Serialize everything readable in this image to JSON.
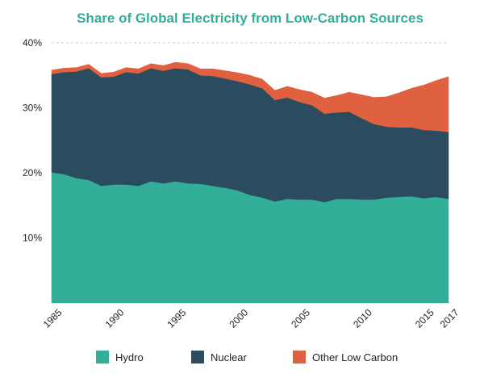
{
  "chart_data": {
    "type": "area",
    "stacked": true,
    "title": "Share of Global Electricity from Low-Carbon Sources",
    "xlabel": "",
    "ylabel": "",
    "xlim": [
      1985,
      2017
    ],
    "ylim": [
      0,
      40
    ],
    "y_ticks": [
      "10%",
      "20%",
      "30%",
      "40%"
    ],
    "y_tick_values": [
      10,
      20,
      30,
      40
    ],
    "x_ticks": [
      "1985",
      "1990",
      "1995",
      "2000",
      "2005",
      "2010",
      "2015",
      "2017"
    ],
    "x_tick_values": [
      1985,
      1990,
      1995,
      2000,
      2005,
      2010,
      2015,
      2017
    ],
    "grid": "horizontal dashed",
    "legend_position": "bottom",
    "x": [
      1985,
      1986,
      1987,
      1988,
      1989,
      1990,
      1991,
      1992,
      1993,
      1994,
      1995,
      1996,
      1997,
      1998,
      1999,
      2000,
      2001,
      2002,
      2003,
      2004,
      2005,
      2006,
      2007,
      2008,
      2009,
      2010,
      2011,
      2012,
      2013,
      2014,
      2015,
      2016,
      2017
    ],
    "series": [
      {
        "name": "Hydro",
        "color": "#33ae98",
        "values": [
          20.1,
          19.8,
          19.2,
          18.9,
          18.0,
          18.2,
          18.2,
          18.0,
          18.7,
          18.4,
          18.7,
          18.4,
          18.3,
          18.0,
          17.7,
          17.3,
          16.6,
          16.2,
          15.6,
          16.0,
          15.9,
          15.9,
          15.5,
          16.0,
          16.0,
          15.9,
          15.9,
          16.2,
          16.3,
          16.4,
          16.1,
          16.3,
          16.0
        ]
      },
      {
        "name": "Nuclear",
        "color": "#2b4b5f",
        "values": [
          15.1,
          15.7,
          16.4,
          17.2,
          16.7,
          16.6,
          17.3,
          17.3,
          17.4,
          17.3,
          17.4,
          17.5,
          16.7,
          16.9,
          16.8,
          16.8,
          17.0,
          16.8,
          15.6,
          15.6,
          15.0,
          14.5,
          13.6,
          13.3,
          13.4,
          12.5,
          11.6,
          10.9,
          10.7,
          10.6,
          10.5,
          10.2,
          10.3
        ]
      },
      {
        "name": "Other Low Carbon",
        "color": "#e0613f",
        "values": [
          0.6,
          0.6,
          0.6,
          0.6,
          0.6,
          0.7,
          0.7,
          0.7,
          0.7,
          0.8,
          0.9,
          0.9,
          1.0,
          1.1,
          1.2,
          1.3,
          1.4,
          1.4,
          1.5,
          1.7,
          1.9,
          2.0,
          2.4,
          2.6,
          3.0,
          3.6,
          4.1,
          4.6,
          5.3,
          6.0,
          6.9,
          7.7,
          8.5
        ]
      }
    ],
    "colors": {
      "title": "#33ae98",
      "grid": "#cccccc",
      "text": "#222222"
    }
  }
}
